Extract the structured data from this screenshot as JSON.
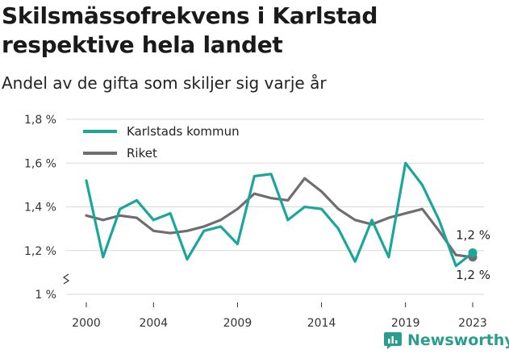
{
  "title": "Skilsmässofrekvens i Karlstad respektive hela landet",
  "subtitle": "Andel av de gifta som skiljer sig varje år",
  "brand": {
    "name": "Newsworthy",
    "icon": "newsworthy-logo-icon"
  },
  "colors": {
    "karlstad": "#1aa69a",
    "riket": "#6e6e72",
    "grid": "#d9d9d9",
    "brand": "#2a9d8f"
  },
  "chart_data": {
    "type": "line",
    "title": "Skilsmässofrekvens i Karlstad respektive hela landet",
    "subtitle": "Andel av de gifta som skiljer sig varje år",
    "xlabel": "",
    "ylabel": "",
    "x": [
      2000,
      2001,
      2002,
      2003,
      2004,
      2005,
      2006,
      2007,
      2008,
      2009,
      2010,
      2011,
      2012,
      2013,
      2014,
      2015,
      2016,
      2017,
      2018,
      2019,
      2020,
      2021,
      2022,
      2023
    ],
    "x_ticks": [
      2000,
      2004,
      2009,
      2014,
      2019,
      2023
    ],
    "ylim": [
      1.0,
      1.8
    ],
    "y_ticks": [
      1.0,
      1.2,
      1.4,
      1.6,
      1.8
    ],
    "y_tick_labels": [
      "1 %",
      "1,2 %",
      "1,4 %",
      "1,6 %",
      "1,8 %"
    ],
    "y_axis_break": true,
    "grid": true,
    "legend_position": "top-left",
    "series": [
      {
        "name": "Karlstads kommun",
        "color": "#1aa69a",
        "values": [
          1.52,
          1.17,
          1.39,
          1.43,
          1.34,
          1.37,
          1.16,
          1.29,
          1.31,
          1.23,
          1.54,
          1.55,
          1.34,
          1.4,
          1.39,
          1.3,
          1.15,
          1.34,
          1.17,
          1.6,
          1.5,
          1.34,
          1.13,
          1.19
        ],
        "end_label": "1,2 %"
      },
      {
        "name": "Riket",
        "color": "#6e6e72",
        "values": [
          1.36,
          1.34,
          1.36,
          1.35,
          1.29,
          1.28,
          1.29,
          1.31,
          1.34,
          1.39,
          1.46,
          1.44,
          1.43,
          1.53,
          1.47,
          1.39,
          1.34,
          1.32,
          1.35,
          1.37,
          1.39,
          1.29,
          1.18,
          1.17
        ],
        "end_label": "1,2 %"
      }
    ]
  }
}
